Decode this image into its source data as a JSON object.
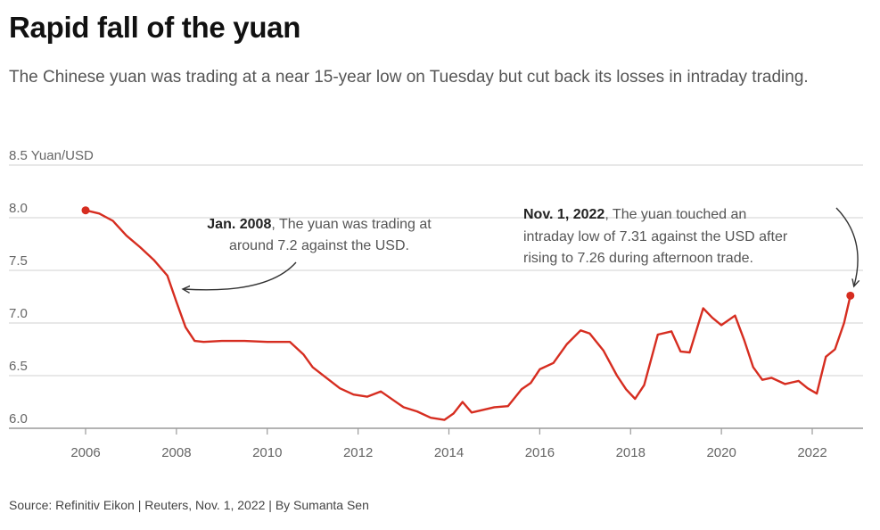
{
  "header": {
    "title": "Rapid fall of the yuan",
    "subtitle": "The Chinese yuan was trading at a near 15-year low on Tuesday but cut back its losses in intraday trading."
  },
  "footer": {
    "source": "Source: Refinitiv Eikon | Reuters, Nov. 1, 2022 | By Sumanta Sen"
  },
  "colors": {
    "series": "#d62d20",
    "grid": "#d0d0d0",
    "axis": "#9a9a9a"
  },
  "chart_data": {
    "type": "line",
    "title": "Rapid fall of the yuan",
    "ylabel": "Yuan/USD",
    "ylim": [
      6.0,
      8.5
    ],
    "xlim": [
      2006,
      2023
    ],
    "y_ticks": [
      "6.0",
      "6.5",
      "7.0",
      "7.5",
      "8.0",
      "8.5"
    ],
    "y_tick_values": [
      6.0,
      6.5,
      7.0,
      7.5,
      8.0,
      8.5
    ],
    "x_ticks": [
      "2006",
      "2008",
      "2010",
      "2012",
      "2014",
      "2016",
      "2018",
      "2020",
      "2022"
    ],
    "x_tick_values": [
      2006,
      2008,
      2010,
      2012,
      2014,
      2016,
      2018,
      2020,
      2022
    ],
    "grid": "horizontal",
    "series": [
      {
        "x": [
          2006.0,
          2006.3,
          2006.6,
          2006.9,
          2007.2,
          2007.5,
          2007.8,
          2008.0,
          2008.2,
          2008.4,
          2008.6,
          2009.0,
          2009.5,
          2010.0,
          2010.5,
          2010.8,
          2011.0,
          2011.3,
          2011.6,
          2011.9,
          2012.2,
          2012.5,
          2012.8,
          2013.0,
          2013.3,
          2013.6,
          2013.9,
          2014.1,
          2014.3,
          2014.5,
          2014.8,
          2015.0,
          2015.3,
          2015.6,
          2015.8,
          2016.0,
          2016.3,
          2016.6,
          2016.9,
          2017.1,
          2017.4,
          2017.7,
          2017.9,
          2018.1,
          2018.3,
          2018.6,
          2018.9,
          2019.1,
          2019.3,
          2019.6,
          2019.8,
          2020.0,
          2020.3,
          2020.5,
          2020.7,
          2020.9,
          2021.1,
          2021.4,
          2021.7,
          2021.9,
          2022.1,
          2022.3,
          2022.5,
          2022.7,
          2022.84
        ],
        "y": [
          8.07,
          8.04,
          7.97,
          7.83,
          7.72,
          7.6,
          7.45,
          7.2,
          6.96,
          6.83,
          6.82,
          6.83,
          6.83,
          6.82,
          6.82,
          6.7,
          6.58,
          6.48,
          6.38,
          6.32,
          6.3,
          6.35,
          6.26,
          6.2,
          6.16,
          6.1,
          6.08,
          6.14,
          6.25,
          6.15,
          6.18,
          6.2,
          6.21,
          6.37,
          6.43,
          6.56,
          6.62,
          6.8,
          6.93,
          6.9,
          6.74,
          6.5,
          6.37,
          6.28,
          6.41,
          6.89,
          6.92,
          6.73,
          6.72,
          7.14,
          7.05,
          6.98,
          7.07,
          6.84,
          6.58,
          6.46,
          6.48,
          6.42,
          6.45,
          6.38,
          6.33,
          6.68,
          6.75,
          7.0,
          7.26
        ]
      }
    ],
    "annotations": [
      {
        "bold": "Jan. 2008",
        "line1_rest": ", The yuan was trading at",
        "line2": "around 7.2 against the USD."
      },
      {
        "bold": "Nov. 1, 2022",
        "line1_rest": ", The yuan touched an",
        "line2": "intraday low of 7.31 against the USD after",
        "line3": "rising to 7.26 during afternoon trade."
      }
    ]
  }
}
